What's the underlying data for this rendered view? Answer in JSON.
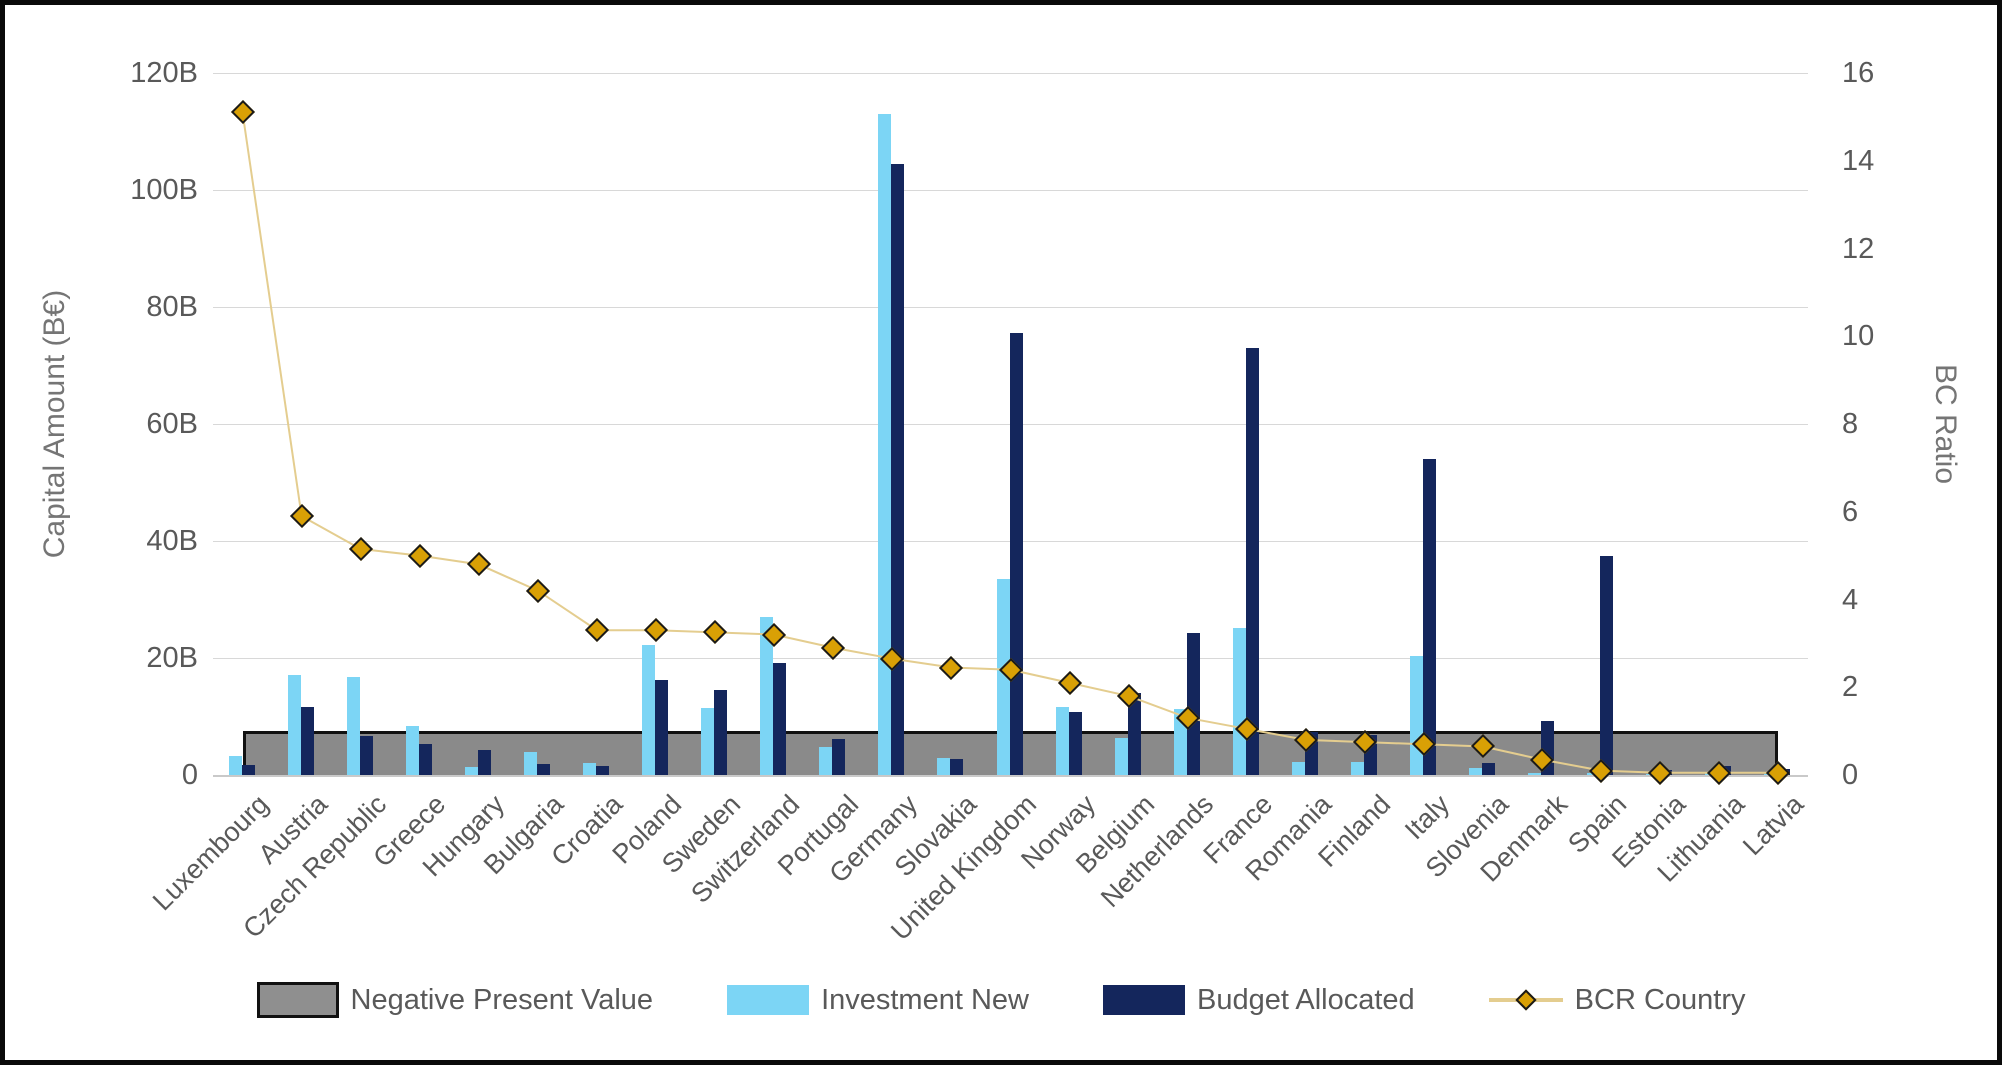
{
  "chart_data": {
    "type": "bar",
    "left_axis": {
      "label": "Capital Amount (B€)",
      "tick_labels": [
        "120B",
        "100B",
        "80B",
        "60B",
        "40B",
        "20B",
        "0"
      ],
      "tick_values": [
        120,
        100,
        80,
        60,
        40,
        20,
        0
      ],
      "max": 120
    },
    "right_axis": {
      "label": "BC Ratio",
      "tick_labels": [
        "16",
        "14",
        "12",
        "10",
        "8",
        "6",
        "4",
        "2",
        "0"
      ],
      "tick_values": [
        16,
        14,
        12,
        10,
        8,
        6,
        4,
        2,
        0
      ],
      "max": 16
    },
    "categories": [
      "Luxembourg",
      "Austria",
      "Czech Republic",
      "Greece",
      "Hungary",
      "Bulgaria",
      "Croatia",
      "Poland",
      "Sweden",
      "Switzerland",
      "Portugal",
      "Germany",
      "Slovakia",
      "United Kingdom",
      "Norway",
      "Belgium",
      "Netherlands",
      "France",
      "Romania",
      "Finland",
      "Italy",
      "Slovenia",
      "Denmark",
      "Spain",
      "Estonia",
      "Lithuania",
      "Latvia"
    ],
    "series": [
      {
        "name": "Investment New",
        "type": "bar",
        "color": "#7cd5f5",
        "values": [
          3.2,
          17.1,
          16.7,
          8.4,
          1.3,
          3.9,
          2.0,
          22.3,
          11.5,
          27.0,
          4.8,
          113.0,
          2.9,
          33.5,
          11.7,
          6.3,
          11.3,
          25.2,
          2.3,
          2.2,
          20.3,
          1.2,
          0.4,
          0.3,
          0.2,
          0.3,
          0.2
        ]
      },
      {
        "name": "Budget Allocated",
        "type": "bar",
        "color": "#14265c",
        "values": [
          1.7,
          11.7,
          6.7,
          5.3,
          4.2,
          1.9,
          1.6,
          16.2,
          14.5,
          19.2,
          6.2,
          104.5,
          2.7,
          75.5,
          10.8,
          14.0,
          24.2,
          73.0,
          7.3,
          6.8,
          54.0,
          2.0,
          9.2,
          37.5,
          0.8,
          1.5,
          1.0
        ]
      },
      {
        "name": "BCR Country",
        "type": "line",
        "color": "#e4cd8f",
        "marker": "diamond",
        "marker_color": "#d9a005",
        "axis": "right",
        "values": [
          15.1,
          5.9,
          5.15,
          5.0,
          4.8,
          4.2,
          3.3,
          3.3,
          3.25,
          3.2,
          2.9,
          2.65,
          2.45,
          2.4,
          2.1,
          1.8,
          1.3,
          1.05,
          0.8,
          0.75,
          0.7,
          0.65,
          0.35,
          0.1,
          0.05,
          0.05,
          0.05
        ]
      }
    ],
    "npv_band": {
      "name": "Negative Present Value",
      "value": 7.5,
      "fill": "#8a8a8a",
      "border": "#111111",
      "from_category": 0,
      "to_category": 26
    },
    "grid": "horizontal",
    "legend_position": "bottom"
  },
  "legend": {
    "npv_label": "Negative Present Value",
    "investment_label": "Investment New",
    "budget_label": "Budget Allocated",
    "bcr_label": "BCR Country"
  },
  "titles": {
    "left_axis": "Capital Amount (B€)",
    "right_axis": "BC Ratio"
  }
}
